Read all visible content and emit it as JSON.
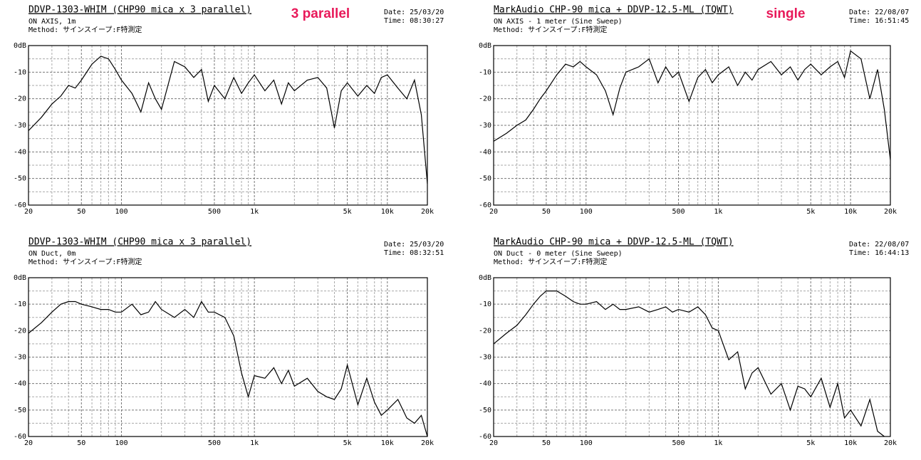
{
  "chart_data": [
    {
      "type": "line",
      "title": "DDVP-1303-WHIM (CHP90 mica x 3 parallel)",
      "subtitle": "ON AXIS, 1m",
      "method": "Method: サインスイープ:F特測定",
      "date": "Date: 25/03/20",
      "time": "Time: 08:30:27",
      "annotation": "3 parallel",
      "xscale": "log",
      "xlim": [
        20,
        20000
      ],
      "ylim": [
        -60,
        0
      ],
      "grid": true,
      "color": "#000000",
      "xticks": [
        20,
        50,
        100,
        500,
        {
          "value": 1000,
          "label": "1k"
        },
        {
          "value": 5000,
          "label": "5k"
        },
        {
          "value": 10000,
          "label": "10k"
        },
        {
          "value": 20000,
          "label": "20k"
        }
      ],
      "yticks": [
        {
          "value": 0,
          "label": "0dB"
        },
        -10,
        -20,
        -30,
        -40,
        -50,
        -60
      ],
      "xminor": [
        30,
        40,
        60,
        70,
        80,
        90,
        200,
        300,
        400,
        600,
        700,
        800,
        900,
        2000,
        3000,
        4000,
        6000,
        7000,
        8000,
        9000
      ],
      "yminor": [
        -5,
        -15,
        -25,
        -35,
        -45,
        -55
      ],
      "x": [
        20,
        25,
        30,
        35,
        40,
        45,
        50,
        60,
        70,
        80,
        90,
        100,
        120,
        140,
        160,
        180,
        200,
        250,
        300,
        350,
        400,
        450,
        500,
        600,
        700,
        800,
        900,
        1000,
        1200,
        1400,
        1600,
        1800,
        2000,
        2500,
        3000,
        3500,
        4000,
        4500,
        5000,
        6000,
        7000,
        8000,
        9000,
        10000,
        12000,
        14000,
        16000,
        18000,
        20000
      ],
      "values": [
        -32,
        -27,
        -22,
        -19,
        -15,
        -16,
        -13,
        -7,
        -4,
        -5,
        -9,
        -13,
        -18,
        -25,
        -14,
        -20,
        -24,
        -6,
        -8,
        -12,
        -9,
        -21,
        -15,
        -20,
        -12,
        -18,
        -14,
        -11,
        -17,
        -13,
        -22,
        -14,
        -17,
        -13,
        -12,
        -16,
        -31,
        -17,
        -14,
        -19,
        -15,
        -18,
        -12,
        -11,
        -16,
        -20,
        -13,
        -26,
        -52
      ]
    },
    {
      "type": "line",
      "title": "MarkAudio CHP-90 mica + DDVP-12.5-ML (TQWT)",
      "subtitle": "ON AXIS - 1 meter (Sine Sweep)",
      "method": "Method: サインスイープ:F特測定",
      "date": "Date: 22/08/07",
      "time": "Time: 16:51:45",
      "annotation": "single",
      "xscale": "log",
      "xlim": [
        20,
        20000
      ],
      "ylim": [
        -60,
        0
      ],
      "grid": true,
      "color": "#000000",
      "xticks": [
        20,
        50,
        100,
        500,
        {
          "value": 1000,
          "label": "1k"
        },
        {
          "value": 5000,
          "label": "5k"
        },
        {
          "value": 10000,
          "label": "10k"
        },
        {
          "value": 20000,
          "label": "20k"
        }
      ],
      "yticks": [
        {
          "value": 0,
          "label": "0dB"
        },
        -10,
        -20,
        -30,
        -40,
        -50,
        -60
      ],
      "xminor": [
        30,
        40,
        60,
        70,
        80,
        90,
        200,
        300,
        400,
        600,
        700,
        800,
        900,
        2000,
        3000,
        4000,
        6000,
        7000,
        8000,
        9000
      ],
      "yminor": [
        -5,
        -15,
        -25,
        -35,
        -45,
        -55
      ],
      "x": [
        20,
        25,
        30,
        35,
        40,
        45,
        50,
        60,
        70,
        80,
        90,
        100,
        120,
        140,
        160,
        180,
        200,
        250,
        300,
        350,
        400,
        450,
        500,
        600,
        700,
        800,
        900,
        1000,
        1200,
        1400,
        1600,
        1800,
        2000,
        2500,
        3000,
        3500,
        4000,
        4500,
        5000,
        6000,
        7000,
        8000,
        9000,
        10000,
        12000,
        14000,
        16000,
        18000,
        20000
      ],
      "values": [
        -36,
        -33,
        -30,
        -28,
        -24,
        -20,
        -17,
        -11,
        -7,
        -8,
        -6,
        -8,
        -11,
        -17,
        -26,
        -16,
        -10,
        -8,
        -5,
        -14,
        -8,
        -12,
        -10,
        -21,
        -12,
        -9,
        -14,
        -11,
        -8,
        -15,
        -10,
        -13,
        -9,
        -6,
        -11,
        -8,
        -13,
        -9,
        -7,
        -11,
        -8,
        -6,
        -12,
        -2,
        -5,
        -20,
        -9,
        -24,
        -43
      ]
    },
    {
      "type": "line",
      "title": "DDVP-1303-WHIM (CHP90 mica x 3 parallel)",
      "subtitle": "ON Duct, 0m",
      "method": "Method: サインスイープ:F特測定",
      "date": "Date: 25/03/20",
      "time": "Time: 08:32:51",
      "xscale": "log",
      "xlim": [
        20,
        20000
      ],
      "ylim": [
        -60,
        0
      ],
      "grid": true,
      "color": "#000000",
      "xticks": [
        20,
        50,
        100,
        500,
        {
          "value": 1000,
          "label": "1k"
        },
        {
          "value": 5000,
          "label": "5k"
        },
        {
          "value": 10000,
          "label": "10k"
        },
        {
          "value": 20000,
          "label": "20k"
        }
      ],
      "yticks": [
        {
          "value": 0,
          "label": "0dB"
        },
        -10,
        -20,
        -30,
        -40,
        -50,
        -60
      ],
      "xminor": [
        30,
        40,
        60,
        70,
        80,
        90,
        200,
        300,
        400,
        600,
        700,
        800,
        900,
        2000,
        3000,
        4000,
        6000,
        7000,
        8000,
        9000
      ],
      "yminor": [
        -5,
        -15,
        -25,
        -35,
        -45,
        -55
      ],
      "x": [
        20,
        25,
        30,
        35,
        40,
        45,
        50,
        60,
        70,
        80,
        90,
        100,
        120,
        140,
        160,
        180,
        200,
        250,
        300,
        350,
        400,
        450,
        500,
        600,
        700,
        800,
        900,
        1000,
        1200,
        1400,
        1600,
        1800,
        2000,
        2500,
        3000,
        3500,
        4000,
        4500,
        5000,
        6000,
        7000,
        8000,
        9000,
        10000,
        12000,
        14000,
        16000,
        18000,
        20000
      ],
      "values": [
        -21,
        -17,
        -13,
        -10,
        -9,
        -9,
        -10,
        -11,
        -12,
        -12,
        -13,
        -13,
        -10,
        -14,
        -13,
        -9,
        -12,
        -15,
        -12,
        -15,
        -9,
        -13,
        -13,
        -15,
        -22,
        -36,
        -45,
        -37,
        -38,
        -34,
        -40,
        -35,
        -41,
        -38,
        -43,
        -45,
        -46,
        -42,
        -33,
        -48,
        -38,
        -47,
        -52,
        -50,
        -46,
        -53,
        -55,
        -52,
        -60
      ]
    },
    {
      "type": "line",
      "title": "MarkAudio CHP-90 mica + DDVP-12.5-ML (TQWT)",
      "subtitle": "ON Duct - 0 meter (Sine Sweep)",
      "method": "Method: サインスイープ:F特測定",
      "date": "Date: 22/08/07",
      "time": "Time: 16:44:13",
      "xscale": "log",
      "xlim": [
        20,
        20000
      ],
      "ylim": [
        -60,
        0
      ],
      "grid": true,
      "color": "#000000",
      "xticks": [
        20,
        50,
        100,
        500,
        {
          "value": 1000,
          "label": "1k"
        },
        {
          "value": 5000,
          "label": "5k"
        },
        {
          "value": 10000,
          "label": "10k"
        },
        {
          "value": 20000,
          "label": "20k"
        }
      ],
      "yticks": [
        {
          "value": 0,
          "label": "0dB"
        },
        -10,
        -20,
        -30,
        -40,
        -50,
        -60
      ],
      "xminor": [
        30,
        40,
        60,
        70,
        80,
        90,
        200,
        300,
        400,
        600,
        700,
        800,
        900,
        2000,
        3000,
        4000,
        6000,
        7000,
        8000,
        9000
      ],
      "yminor": [
        -5,
        -15,
        -25,
        -35,
        -45,
        -55
      ],
      "x": [
        20,
        25,
        30,
        35,
        40,
        45,
        50,
        60,
        70,
        80,
        90,
        100,
        120,
        140,
        160,
        180,
        200,
        250,
        300,
        350,
        400,
        450,
        500,
        600,
        700,
        800,
        900,
        1000,
        1200,
        1400,
        1600,
        1800,
        2000,
        2500,
        3000,
        3500,
        4000,
        4500,
        5000,
        6000,
        7000,
        8000,
        9000,
        10000,
        12000,
        14000,
        16000,
        18000
      ],
      "values": [
        -25,
        -21,
        -18,
        -14,
        -10,
        -7,
        -5,
        -5,
        -7,
        -9,
        -10,
        -10,
        -9,
        -12,
        -10,
        -12,
        -12,
        -11,
        -13,
        -12,
        -11,
        -13,
        -12,
        -13,
        -11,
        -14,
        -19,
        -20,
        -31,
        -28,
        -42,
        -36,
        -34,
        -44,
        -40,
        -50,
        -41,
        -42,
        -45,
        -38,
        -49,
        -40,
        -53,
        -50,
        -56,
        -46,
        -58,
        -60
      ]
    }
  ]
}
